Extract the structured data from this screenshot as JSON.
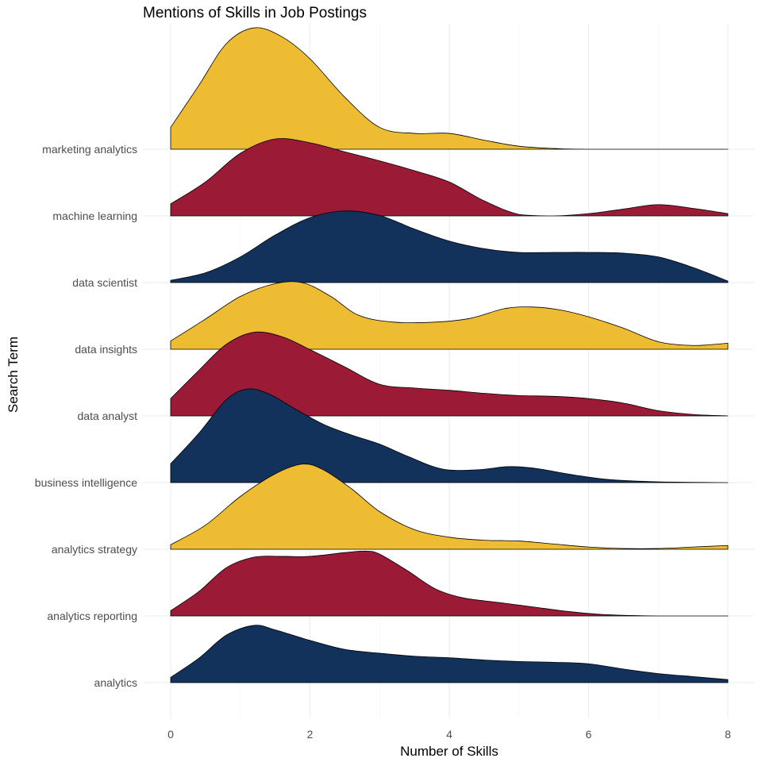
{
  "chart_data": {
    "type": "ridgeline",
    "title": "Mentions of Skills in Job Postings",
    "xlabel": "Number of Skills",
    "ylabel": "Search Term",
    "xlim": [
      0,
      8
    ],
    "x_ticks": [
      "0",
      "2",
      "4",
      "6",
      "8"
    ],
    "grid": true,
    "legend": "none",
    "series": [
      {
        "name": "analytics",
        "color": "#12325C",
        "points": [
          [
            0,
            0.07
          ],
          [
            0.4,
            0.32
          ],
          [
            0.8,
            0.63
          ],
          [
            1.2,
            0.76
          ],
          [
            1.5,
            0.7
          ],
          [
            2.0,
            0.56
          ],
          [
            2.5,
            0.44
          ],
          [
            3.0,
            0.39
          ],
          [
            3.5,
            0.35
          ],
          [
            4.0,
            0.33
          ],
          [
            4.5,
            0.3
          ],
          [
            5.0,
            0.28
          ],
          [
            5.5,
            0.27
          ],
          [
            6.0,
            0.25
          ],
          [
            6.5,
            0.18
          ],
          [
            7.0,
            0.12
          ],
          [
            7.5,
            0.08
          ],
          [
            8.0,
            0.04
          ]
        ]
      },
      {
        "name": "analytics reporting",
        "color": "#9B1A36",
        "points": [
          [
            0,
            0.07
          ],
          [
            0.4,
            0.32
          ],
          [
            0.8,
            0.64
          ],
          [
            1.2,
            0.78
          ],
          [
            1.6,
            0.79
          ],
          [
            2.0,
            0.79
          ],
          [
            2.5,
            0.84
          ],
          [
            2.8,
            0.86
          ],
          [
            3.0,
            0.82
          ],
          [
            3.4,
            0.6
          ],
          [
            3.8,
            0.36
          ],
          [
            4.2,
            0.24
          ],
          [
            4.7,
            0.18
          ],
          [
            5.2,
            0.12
          ],
          [
            5.7,
            0.06
          ],
          [
            6.2,
            0.02
          ],
          [
            7.0,
            0.0
          ],
          [
            8.0,
            0.0
          ]
        ]
      },
      {
        "name": "analytics strategy",
        "color": "#EEBC32",
        "points": [
          [
            0,
            0.06
          ],
          [
            0.5,
            0.32
          ],
          [
            1.0,
            0.7
          ],
          [
            1.5,
            1.0
          ],
          [
            1.9,
            1.13
          ],
          [
            2.2,
            1.05
          ],
          [
            2.6,
            0.8
          ],
          [
            3.0,
            0.5
          ],
          [
            3.5,
            0.26
          ],
          [
            4.0,
            0.16
          ],
          [
            4.5,
            0.12
          ],
          [
            5.0,
            0.11
          ],
          [
            5.5,
            0.07
          ],
          [
            6.0,
            0.03
          ],
          [
            6.5,
            0.01
          ],
          [
            7.0,
            0.01
          ],
          [
            7.5,
            0.03
          ],
          [
            8.0,
            0.05
          ]
        ]
      },
      {
        "name": "business intelligence",
        "color": "#12325C",
        "points": [
          [
            0,
            0.25
          ],
          [
            0.4,
            0.65
          ],
          [
            0.8,
            1.1
          ],
          [
            1.1,
            1.24
          ],
          [
            1.4,
            1.18
          ],
          [
            1.8,
            0.97
          ],
          [
            2.2,
            0.77
          ],
          [
            2.6,
            0.63
          ],
          [
            3.0,
            0.51
          ],
          [
            3.4,
            0.35
          ],
          [
            3.9,
            0.18
          ],
          [
            4.4,
            0.17
          ],
          [
            4.8,
            0.21
          ],
          [
            5.0,
            0.21
          ],
          [
            5.3,
            0.18
          ],
          [
            5.8,
            0.1
          ],
          [
            6.3,
            0.04
          ],
          [
            7.0,
            0.01
          ],
          [
            8.0,
            0.0
          ]
        ]
      },
      {
        "name": "data analyst",
        "color": "#9B1A36",
        "points": [
          [
            0,
            0.23
          ],
          [
            0.4,
            0.6
          ],
          [
            0.8,
            0.95
          ],
          [
            1.2,
            1.11
          ],
          [
            1.6,
            1.05
          ],
          [
            2.0,
            0.88
          ],
          [
            2.5,
            0.65
          ],
          [
            3.0,
            0.42
          ],
          [
            3.5,
            0.37
          ],
          [
            4.0,
            0.34
          ],
          [
            4.5,
            0.3
          ],
          [
            5.0,
            0.27
          ],
          [
            5.5,
            0.26
          ],
          [
            6.0,
            0.23
          ],
          [
            6.5,
            0.17
          ],
          [
            7.0,
            0.07
          ],
          [
            7.5,
            0.02
          ],
          [
            8.0,
            0.0
          ]
        ]
      },
      {
        "name": "data insights",
        "color": "#EEBC32",
        "points": [
          [
            0,
            0.11
          ],
          [
            0.5,
            0.4
          ],
          [
            1.0,
            0.7
          ],
          [
            1.5,
            0.87
          ],
          [
            1.9,
            0.88
          ],
          [
            2.3,
            0.7
          ],
          [
            2.7,
            0.45
          ],
          [
            3.2,
            0.36
          ],
          [
            3.8,
            0.36
          ],
          [
            4.3,
            0.41
          ],
          [
            4.8,
            0.54
          ],
          [
            5.2,
            0.56
          ],
          [
            5.6,
            0.52
          ],
          [
            6.0,
            0.43
          ],
          [
            6.5,
            0.28
          ],
          [
            7.0,
            0.1
          ],
          [
            7.5,
            0.05
          ],
          [
            8.0,
            0.08
          ]
        ]
      },
      {
        "name": "data scientist",
        "color": "#12325C",
        "points": [
          [
            0,
            0.03
          ],
          [
            0.5,
            0.13
          ],
          [
            1.0,
            0.34
          ],
          [
            1.5,
            0.63
          ],
          [
            2.0,
            0.86
          ],
          [
            2.5,
            0.95
          ],
          [
            3.0,
            0.89
          ],
          [
            3.5,
            0.71
          ],
          [
            4.0,
            0.55
          ],
          [
            4.5,
            0.45
          ],
          [
            5.0,
            0.4
          ],
          [
            5.5,
            0.4
          ],
          [
            6.0,
            0.4
          ],
          [
            6.5,
            0.39
          ],
          [
            7.0,
            0.34
          ],
          [
            7.5,
            0.2
          ],
          [
            8.0,
            0.02
          ]
        ]
      },
      {
        "name": "machine learning",
        "color": "#9B1A36",
        "points": [
          [
            0,
            0.16
          ],
          [
            0.5,
            0.45
          ],
          [
            1.0,
            0.83
          ],
          [
            1.5,
            1.02
          ],
          [
            2.0,
            0.97
          ],
          [
            2.5,
            0.85
          ],
          [
            3.0,
            0.73
          ],
          [
            3.5,
            0.6
          ],
          [
            4.0,
            0.45
          ],
          [
            4.5,
            0.2
          ],
          [
            5.0,
            0.02
          ],
          [
            5.5,
            0.0
          ],
          [
            6.0,
            0.03
          ],
          [
            6.5,
            0.09
          ],
          [
            7.0,
            0.15
          ],
          [
            7.5,
            0.1
          ],
          [
            8.0,
            0.03
          ]
        ]
      },
      {
        "name": "marketing analytics",
        "color": "#EEBC32",
        "points": [
          [
            0,
            0.29
          ],
          [
            0.4,
            0.84
          ],
          [
            0.8,
            1.4
          ],
          [
            1.2,
            1.61
          ],
          [
            1.6,
            1.49
          ],
          [
            2.0,
            1.2
          ],
          [
            2.5,
            0.69
          ],
          [
            3.0,
            0.29
          ],
          [
            3.5,
            0.21
          ],
          [
            4.0,
            0.21
          ],
          [
            4.5,
            0.12
          ],
          [
            5.0,
            0.04
          ],
          [
            5.5,
            0.01
          ],
          [
            6.0,
            0.0
          ],
          [
            8.0,
            0.0
          ]
        ]
      }
    ]
  }
}
